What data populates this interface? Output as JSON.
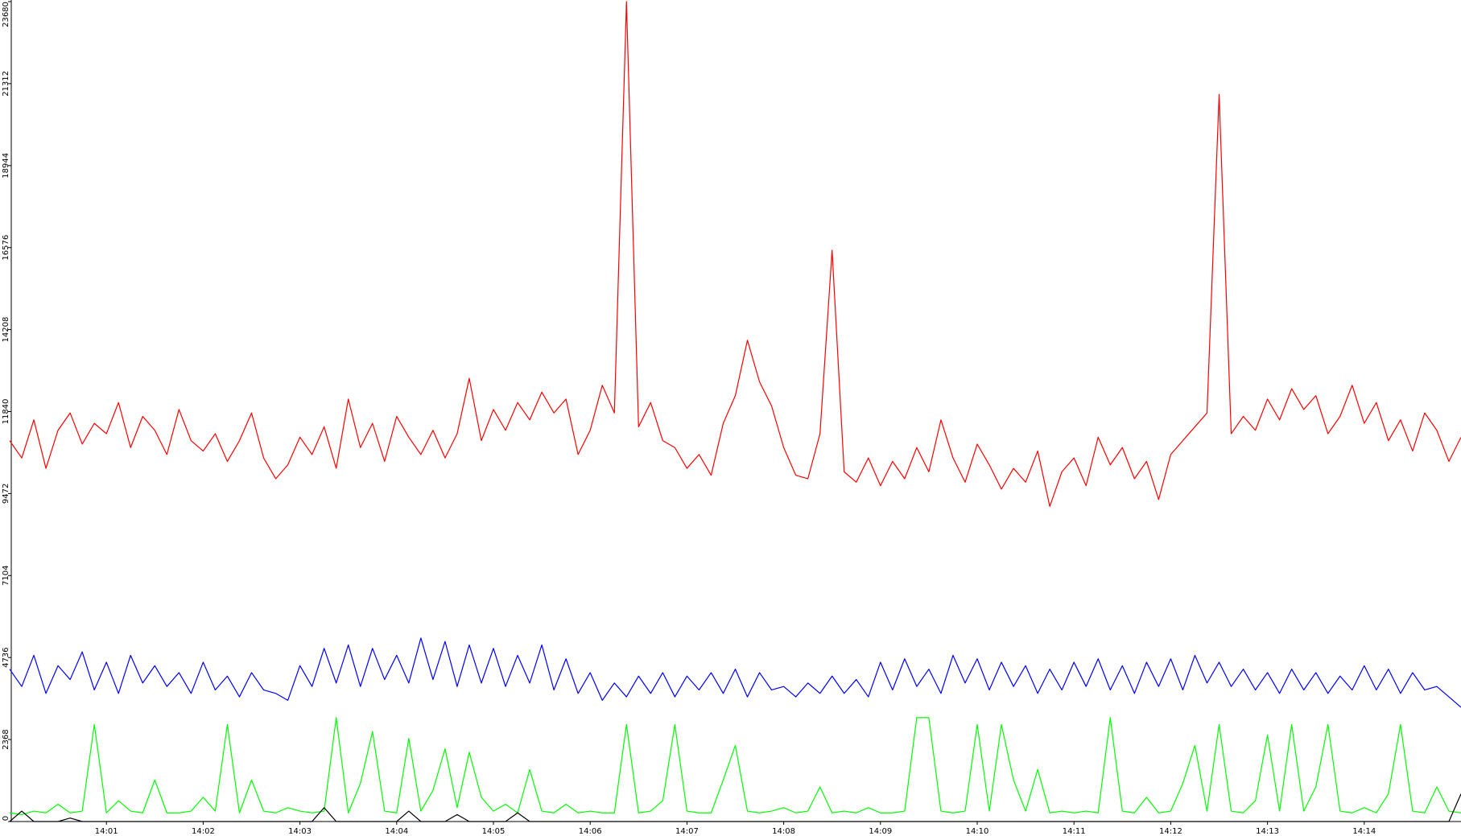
{
  "chart_data": {
    "type": "line",
    "categories": [
      null,
      null,
      null,
      null,
      null,
      null,
      null,
      null,
      "14:01",
      null,
      null,
      null,
      null,
      null,
      null,
      null,
      "14:02",
      null,
      null,
      null,
      null,
      null,
      null,
      null,
      "14:03",
      null,
      null,
      null,
      null,
      null,
      null,
      null,
      "14:04",
      null,
      null,
      null,
      null,
      null,
      null,
      null,
      "14:05",
      null,
      null,
      null,
      null,
      null,
      null,
      null,
      "14:06",
      null,
      null,
      null,
      null,
      null,
      null,
      null,
      "14:07",
      null,
      null,
      null,
      null,
      null,
      null,
      null,
      "14:08",
      null,
      null,
      null,
      null,
      null,
      null,
      null,
      "14:09",
      null,
      null,
      null,
      null,
      null,
      null,
      null,
      "14:10",
      null,
      null,
      null,
      null,
      null,
      null,
      null,
      "14:11",
      null,
      null,
      null,
      null,
      null,
      null,
      null,
      "14:12",
      null,
      null,
      null,
      null,
      null,
      null,
      null,
      "14:13",
      null,
      null,
      null,
      null,
      null,
      null,
      null,
      "14:14",
      null,
      null,
      null,
      null,
      null,
      null,
      null,
      null
    ],
    "series": [
      {
        "color": "#ff0000",
        "values": [
          11000,
          10500,
          11600,
          10200,
          11300,
          11800,
          10900,
          11500,
          11200,
          12100,
          10800,
          11700,
          11300,
          10600,
          11900,
          11000,
          10700,
          11200,
          10400,
          11000,
          11800,
          10500,
          9900,
          10300,
          11100,
          10600,
          11400,
          10200,
          12200,
          10800,
          11500,
          10400,
          11700,
          11100,
          10600,
          11300,
          10500,
          11200,
          12800,
          11000,
          11900,
          11300,
          12100,
          11600,
          12400,
          11800,
          12200,
          10600,
          11300,
          12600,
          11800,
          23680,
          11400,
          12100,
          11000,
          10800,
          10200,
          10600,
          10000,
          11500,
          12300,
          13900,
          12700,
          12000,
          10800,
          10000,
          9900,
          11200,
          16500,
          10100,
          9800,
          10500,
          9700,
          10400,
          9900,
          10800,
          10100,
          11600,
          10500,
          9800,
          10900,
          10300,
          9600,
          10200,
          9800,
          10700,
          9100,
          10100,
          10500,
          9700,
          11100,
          10300,
          10800,
          9900,
          10400,
          9300,
          10600,
          11000,
          11400,
          11800,
          21000,
          11200,
          11700,
          11300,
          12200,
          11600,
          12500,
          11900,
          12300,
          11200,
          11700,
          12600,
          11500,
          12100,
          11000,
          11600,
          10700,
          11800,
          11300,
          10400,
          11100
        ]
      },
      {
        "color": "#0000ff",
        "values": [
          4400,
          3900,
          4800,
          3700,
          4500,
          4100,
          4900,
          3800,
          4600,
          3700,
          4800,
          4000,
          4500,
          3900,
          4300,
          3700,
          4600,
          3800,
          4200,
          3600,
          4300,
          3800,
          3700,
          3500,
          4500,
          3900,
          5000,
          4000,
          5100,
          3900,
          5000,
          4100,
          4800,
          4000,
          5300,
          4100,
          5200,
          3900,
          5100,
          4000,
          5000,
          3900,
          4800,
          4000,
          5100,
          3800,
          4700,
          3700,
          4300,
          3500,
          4000,
          3600,
          4200,
          3700,
          4300,
          3600,
          4200,
          3800,
          4300,
          3700,
          4400,
          3600,
          4300,
          3800,
          3900,
          3600,
          4000,
          3700,
          4200,
          3700,
          4100,
          3600,
          4600,
          3800,
          4700,
          3900,
          4400,
          3700,
          4800,
          4000,
          4700,
          3800,
          4600,
          3900,
          4500,
          3700,
          4400,
          3800,
          4600,
          3900,
          4700,
          3800,
          4500,
          3700,
          4600,
          3900,
          4700,
          3800,
          4800,
          4000,
          4600,
          3900,
          4400,
          3800,
          4300,
          3700,
          4400,
          3800,
          4300,
          3700,
          4200,
          3800,
          4500,
          3800,
          4400,
          3700,
          4300,
          3800,
          3900,
          3600,
          3300
        ]
      },
      {
        "color": "#00ff00",
        "values": [
          250,
          200,
          300,
          250,
          500,
          250,
          300,
          2800,
          250,
          600,
          300,
          250,
          1200,
          250,
          250,
          300,
          700,
          300,
          2800,
          250,
          1200,
          300,
          250,
          400,
          300,
          250,
          300,
          3000,
          250,
          1100,
          2600,
          300,
          250,
          2400,
          300,
          900,
          2100,
          400,
          2000,
          700,
          300,
          500,
          250,
          1500,
          300,
          250,
          500,
          250,
          300,
          250,
          250,
          2800,
          250,
          300,
          600,
          2800,
          300,
          250,
          250,
          1200,
          2200,
          300,
          250,
          300,
          400,
          250,
          300,
          1000,
          250,
          300,
          250,
          400,
          250,
          250,
          300,
          3000,
          3000,
          300,
          250,
          300,
          2800,
          300,
          2800,
          1200,
          300,
          1500,
          250,
          300,
          250,
          300,
          250,
          3000,
          300,
          250,
          700,
          250,
          300,
          1100,
          2200,
          300,
          2800,
          300,
          250,
          600,
          2500,
          300,
          2800,
          300,
          1000,
          2800,
          300,
          250,
          400,
          250,
          800,
          2800,
          300,
          250,
          1000,
          300,
          250
        ]
      },
      {
        "color": "#000000",
        "values": [
          0,
          300,
          0,
          0,
          0,
          100,
          0,
          0,
          0,
          0,
          0,
          0,
          0,
          0,
          0,
          0,
          0,
          0,
          0,
          0,
          0,
          0,
          0,
          0,
          0,
          0,
          400,
          0,
          0,
          0,
          0,
          0,
          0,
          300,
          0,
          0,
          0,
          200,
          0,
          0,
          0,
          0,
          250,
          0,
          0,
          0,
          0,
          0,
          0,
          0,
          0,
          0,
          0,
          0,
          0,
          0,
          0,
          0,
          0,
          0,
          0,
          0,
          0,
          0,
          0,
          0,
          0,
          0,
          0,
          0,
          0,
          0,
          0,
          0,
          0,
          0,
          0,
          0,
          0,
          0,
          0,
          0,
          0,
          0,
          0,
          0,
          0,
          0,
          0,
          0,
          0,
          0,
          0,
          0,
          0,
          0,
          0,
          0,
          0,
          0,
          0,
          0,
          0,
          0,
          0,
          0,
          0,
          0,
          0,
          0,
          0,
          0,
          0,
          0,
          0,
          0,
          0,
          0,
          0,
          0,
          800
        ]
      }
    ],
    "ylim": [
      0,
      23680
    ],
    "yticks": [
      0,
      2368,
      4736,
      7104,
      9472,
      11840,
      14208,
      16576,
      18944,
      21312,
      23680
    ]
  }
}
